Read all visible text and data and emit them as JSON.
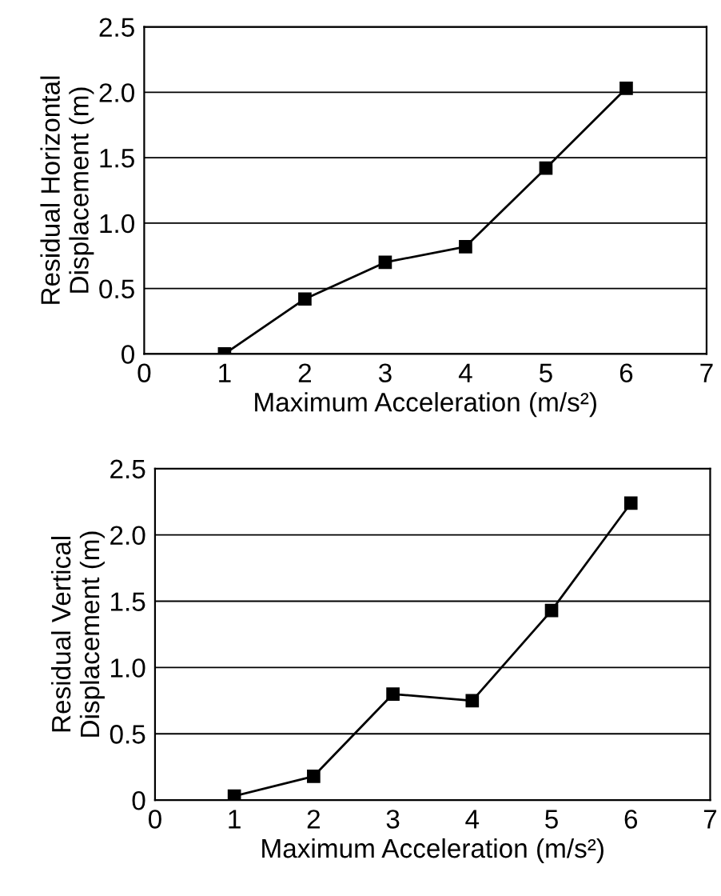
{
  "chart_data": [
    {
      "type": "line",
      "x": [
        1,
        2,
        3,
        4,
        5,
        6
      ],
      "values": [
        0.0,
        0.42,
        0.7,
        0.82,
        1.42,
        2.03
      ],
      "color": "#000000",
      "marker": "square",
      "line_style": "solid",
      "xlabel": "Maximum Acceleration (m/s²)",
      "ylabel": "Residual Horizontal\nDisplacement (m)",
      "xlim": [
        0,
        7
      ],
      "xticks": [
        0,
        1,
        2,
        3,
        4,
        5,
        6,
        7
      ],
      "ylim": [
        0,
        2.5
      ],
      "yticks": [
        {
          "value": 0,
          "label": "0"
        },
        {
          "value": 0.5,
          "label": "0.5"
        },
        {
          "value": 1.0,
          "label": "1.0"
        },
        {
          "value": 1.5,
          "label": "1.5"
        },
        {
          "value": 2.0,
          "label": "2.0"
        },
        {
          "value": 2.5,
          "label": "2.5"
        }
      ],
      "grid": "y"
    },
    {
      "type": "line",
      "x": [
        1,
        2,
        3,
        4,
        5,
        6
      ],
      "values": [
        0.03,
        0.18,
        0.8,
        0.75,
        1.43,
        2.24
      ],
      "color": "#000000",
      "marker": "square",
      "line_style": "solid",
      "xlabel": "Maximum Acceleration (m/s²)",
      "ylabel": "Residual Vertical\nDisplacement (m)",
      "xlim": [
        0,
        7
      ],
      "xticks": [
        0,
        1,
        2,
        3,
        4,
        5,
        6,
        7
      ],
      "ylim": [
        0,
        2.5
      ],
      "yticks": [
        {
          "value": 0,
          "label": "0"
        },
        {
          "value": 0.5,
          "label": "0.5"
        },
        {
          "value": 1.0,
          "label": "1.0"
        },
        {
          "value": 1.5,
          "label": "1.5"
        },
        {
          "value": 2.0,
          "label": "2.0"
        },
        {
          "value": 2.5,
          "label": "2.5"
        }
      ],
      "grid": "y"
    }
  ]
}
